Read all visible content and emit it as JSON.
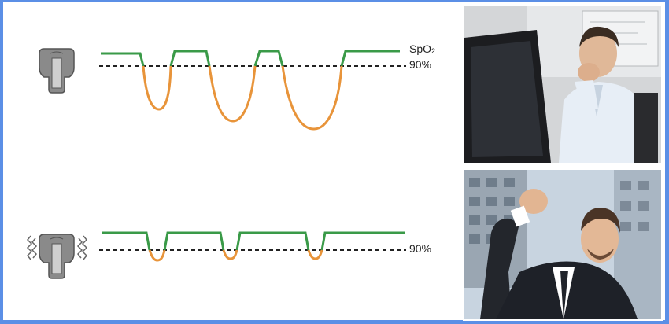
{
  "labels": {
    "spo2_text": "SpO",
    "spo2_subscript": "2",
    "threshold_top": "90%",
    "threshold_bottom": "90%"
  },
  "panels": [
    {
      "device": "mouthpiece-device-icon",
      "vibration": false,
      "photo": "tired-yawning-man-at-desk-photo"
    },
    {
      "device": "mouthpiece-device-icon",
      "vibration": true,
      "photo": "cheering-businessman-photo"
    }
  ],
  "colors": {
    "above_threshold": "#3a9a48",
    "below_threshold": "#e8943a",
    "threshold_line": "#222222",
    "device": "#8a8a8a",
    "background_border": "#5b8fe6"
  }
}
